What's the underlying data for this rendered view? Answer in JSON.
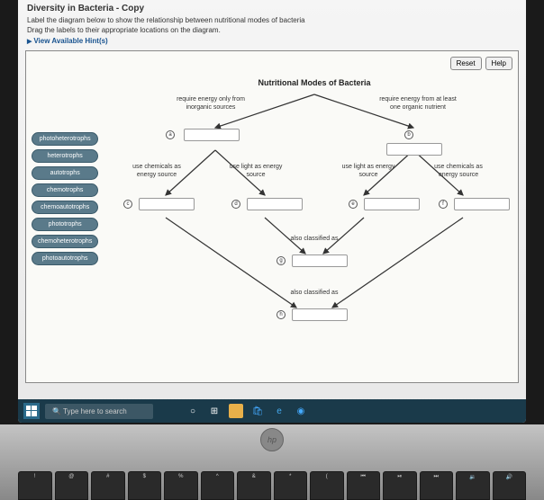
{
  "page": {
    "title": "Diversity in Bacteria - Copy",
    "instruction1": "Label the diagram below to show the relationship between nutritional modes of bacteria",
    "instruction2": "Drag the labels to their appropriate locations on the diagram.",
    "hint_link": "View Available Hint(s)"
  },
  "buttons": {
    "reset": "Reset",
    "help": "Help"
  },
  "label_bank": [
    "photoheterotrophs",
    "heterotrophs",
    "autotrophs",
    "chemotrophs",
    "chemoautotrophs",
    "phototrophs",
    "chemoheterotrophs",
    "photoautotrophs"
  ],
  "diagram": {
    "title": "Nutritional Modes of Bacteria",
    "captions": {
      "left_top": "require energy only from inorganic sources",
      "right_top": "require energy from at least one organic nutrient",
      "c1": "use chemicals as energy source",
      "c2": "use light as energy source",
      "c3": "use light as energy source",
      "c4": "use chemicals as energy source",
      "mid1": "also classified as",
      "mid2": "also classified as"
    },
    "nodes": {
      "a": "a",
      "b": "b",
      "c": "c",
      "d": "d",
      "e": "e",
      "f": "f",
      "g": "g",
      "h": "h"
    },
    "arrow_color": "#333333",
    "dropzone_border": "#999999",
    "bg": "#fafaf7"
  },
  "taskbar": {
    "search_placeholder": "Type here to search",
    "icons": [
      "cortana",
      "store",
      "files",
      "edge",
      "chrome",
      "ie"
    ]
  },
  "laptop": {
    "brand": "hp",
    "keys": [
      "!",
      "@",
      "#",
      "$",
      "%",
      "^",
      "&",
      "*",
      "(",
      "⏮",
      "⏯",
      "⏭",
      "🔉",
      "🔊"
    ]
  },
  "colors": {
    "chip_bg": "#5a7a8a",
    "chip_border": "#3a5a6a",
    "taskbar_bg": "#1a3a4a"
  }
}
